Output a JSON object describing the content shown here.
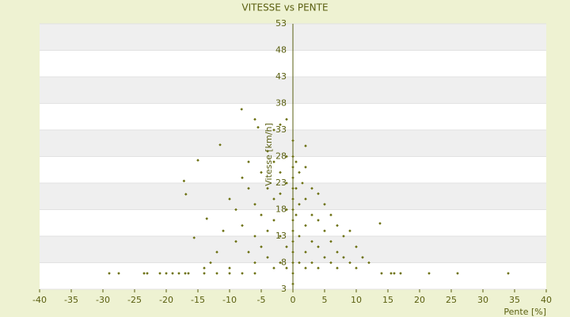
{
  "chart_data": {
    "type": "scatter",
    "title": "VITESSE vs PENTE",
    "x_label": "Pente [%]",
    "y_label": "Vitesse [km/h]",
    "color": "#6b7010",
    "grid": true,
    "xlim": [
      -40,
      40
    ],
    "xticks": [
      -40,
      -35,
      -30,
      -25,
      -20,
      -15,
      -10,
      -5,
      0,
      5,
      10,
      15,
      20,
      25,
      30,
      35,
      40
    ],
    "ylim": [
      3,
      53
    ],
    "yticks": [
      3,
      8,
      13,
      18,
      23,
      28,
      33,
      38,
      43,
      48,
      53
    ],
    "x": [
      -29,
      -27.5,
      -23.5,
      -23,
      -21,
      -20,
      -19,
      -18,
      -17,
      -16.5,
      -14,
      -12,
      -10,
      -8,
      -6,
      14,
      15.5,
      16,
      17,
      21.5,
      26,
      34,
      0,
      0,
      0,
      0,
      0,
      0,
      0,
      0,
      0,
      0,
      0,
      0,
      0,
      0,
      -8.1,
      -6,
      -5.5,
      -11.5,
      -17.2,
      -16.9,
      -15,
      -13.6,
      -15.6,
      13.75,
      -3,
      -2,
      -1,
      2,
      -4,
      -10,
      -9,
      -9,
      -8,
      -8,
      -7,
      -7,
      -7,
      -6,
      -6,
      -6,
      -5,
      -5,
      -5,
      -4,
      -4,
      -4,
      -3,
      -3,
      -3,
      -3,
      -2,
      -2,
      -2,
      -2,
      -1,
      -1,
      -1,
      -1,
      -1,
      0.5,
      0.5,
      0.5,
      1,
      1,
      1,
      1,
      1.5,
      2,
      2,
      2,
      2,
      2,
      3,
      3,
      3,
      3,
      4,
      4,
      4,
      4,
      5,
      5,
      5,
      6,
      6,
      6,
      7,
      7,
      7,
      8,
      8,
      9,
      9,
      10,
      10,
      11,
      12,
      -12,
      -11,
      -13,
      -10,
      -14
    ],
    "y": [
      6,
      6,
      6,
      6,
      6,
      6,
      6,
      6,
      6,
      6,
      6,
      6,
      6,
      6,
      6,
      6,
      6,
      6,
      6,
      6,
      6,
      6,
      4,
      6,
      8,
      10,
      12,
      14,
      16,
      18,
      20,
      22,
      24,
      26,
      28,
      31,
      36.9,
      35,
      33.5,
      30.2,
      23.4,
      20.9,
      27.3,
      16.3,
      12.7,
      15.4,
      33,
      34,
      35,
      30,
      29,
      20,
      18,
      12,
      24,
      15,
      22,
      10,
      27,
      19,
      13,
      8,
      25,
      17,
      11,
      22,
      14,
      9,
      27,
      20,
      16,
      7,
      25,
      21,
      13,
      8,
      28,
      23,
      18,
      11,
      7,
      27,
      22,
      17,
      25,
      19,
      13,
      8,
      23,
      26,
      20,
      15,
      10,
      7,
      22,
      17,
      12,
      8,
      21,
      16,
      11,
      7,
      19,
      14,
      9,
      17,
      12,
      8,
      15,
      10,
      7,
      13,
      9,
      14,
      8,
      11,
      7,
      9,
      8,
      10,
      14,
      8,
      7,
      7
    ]
  }
}
